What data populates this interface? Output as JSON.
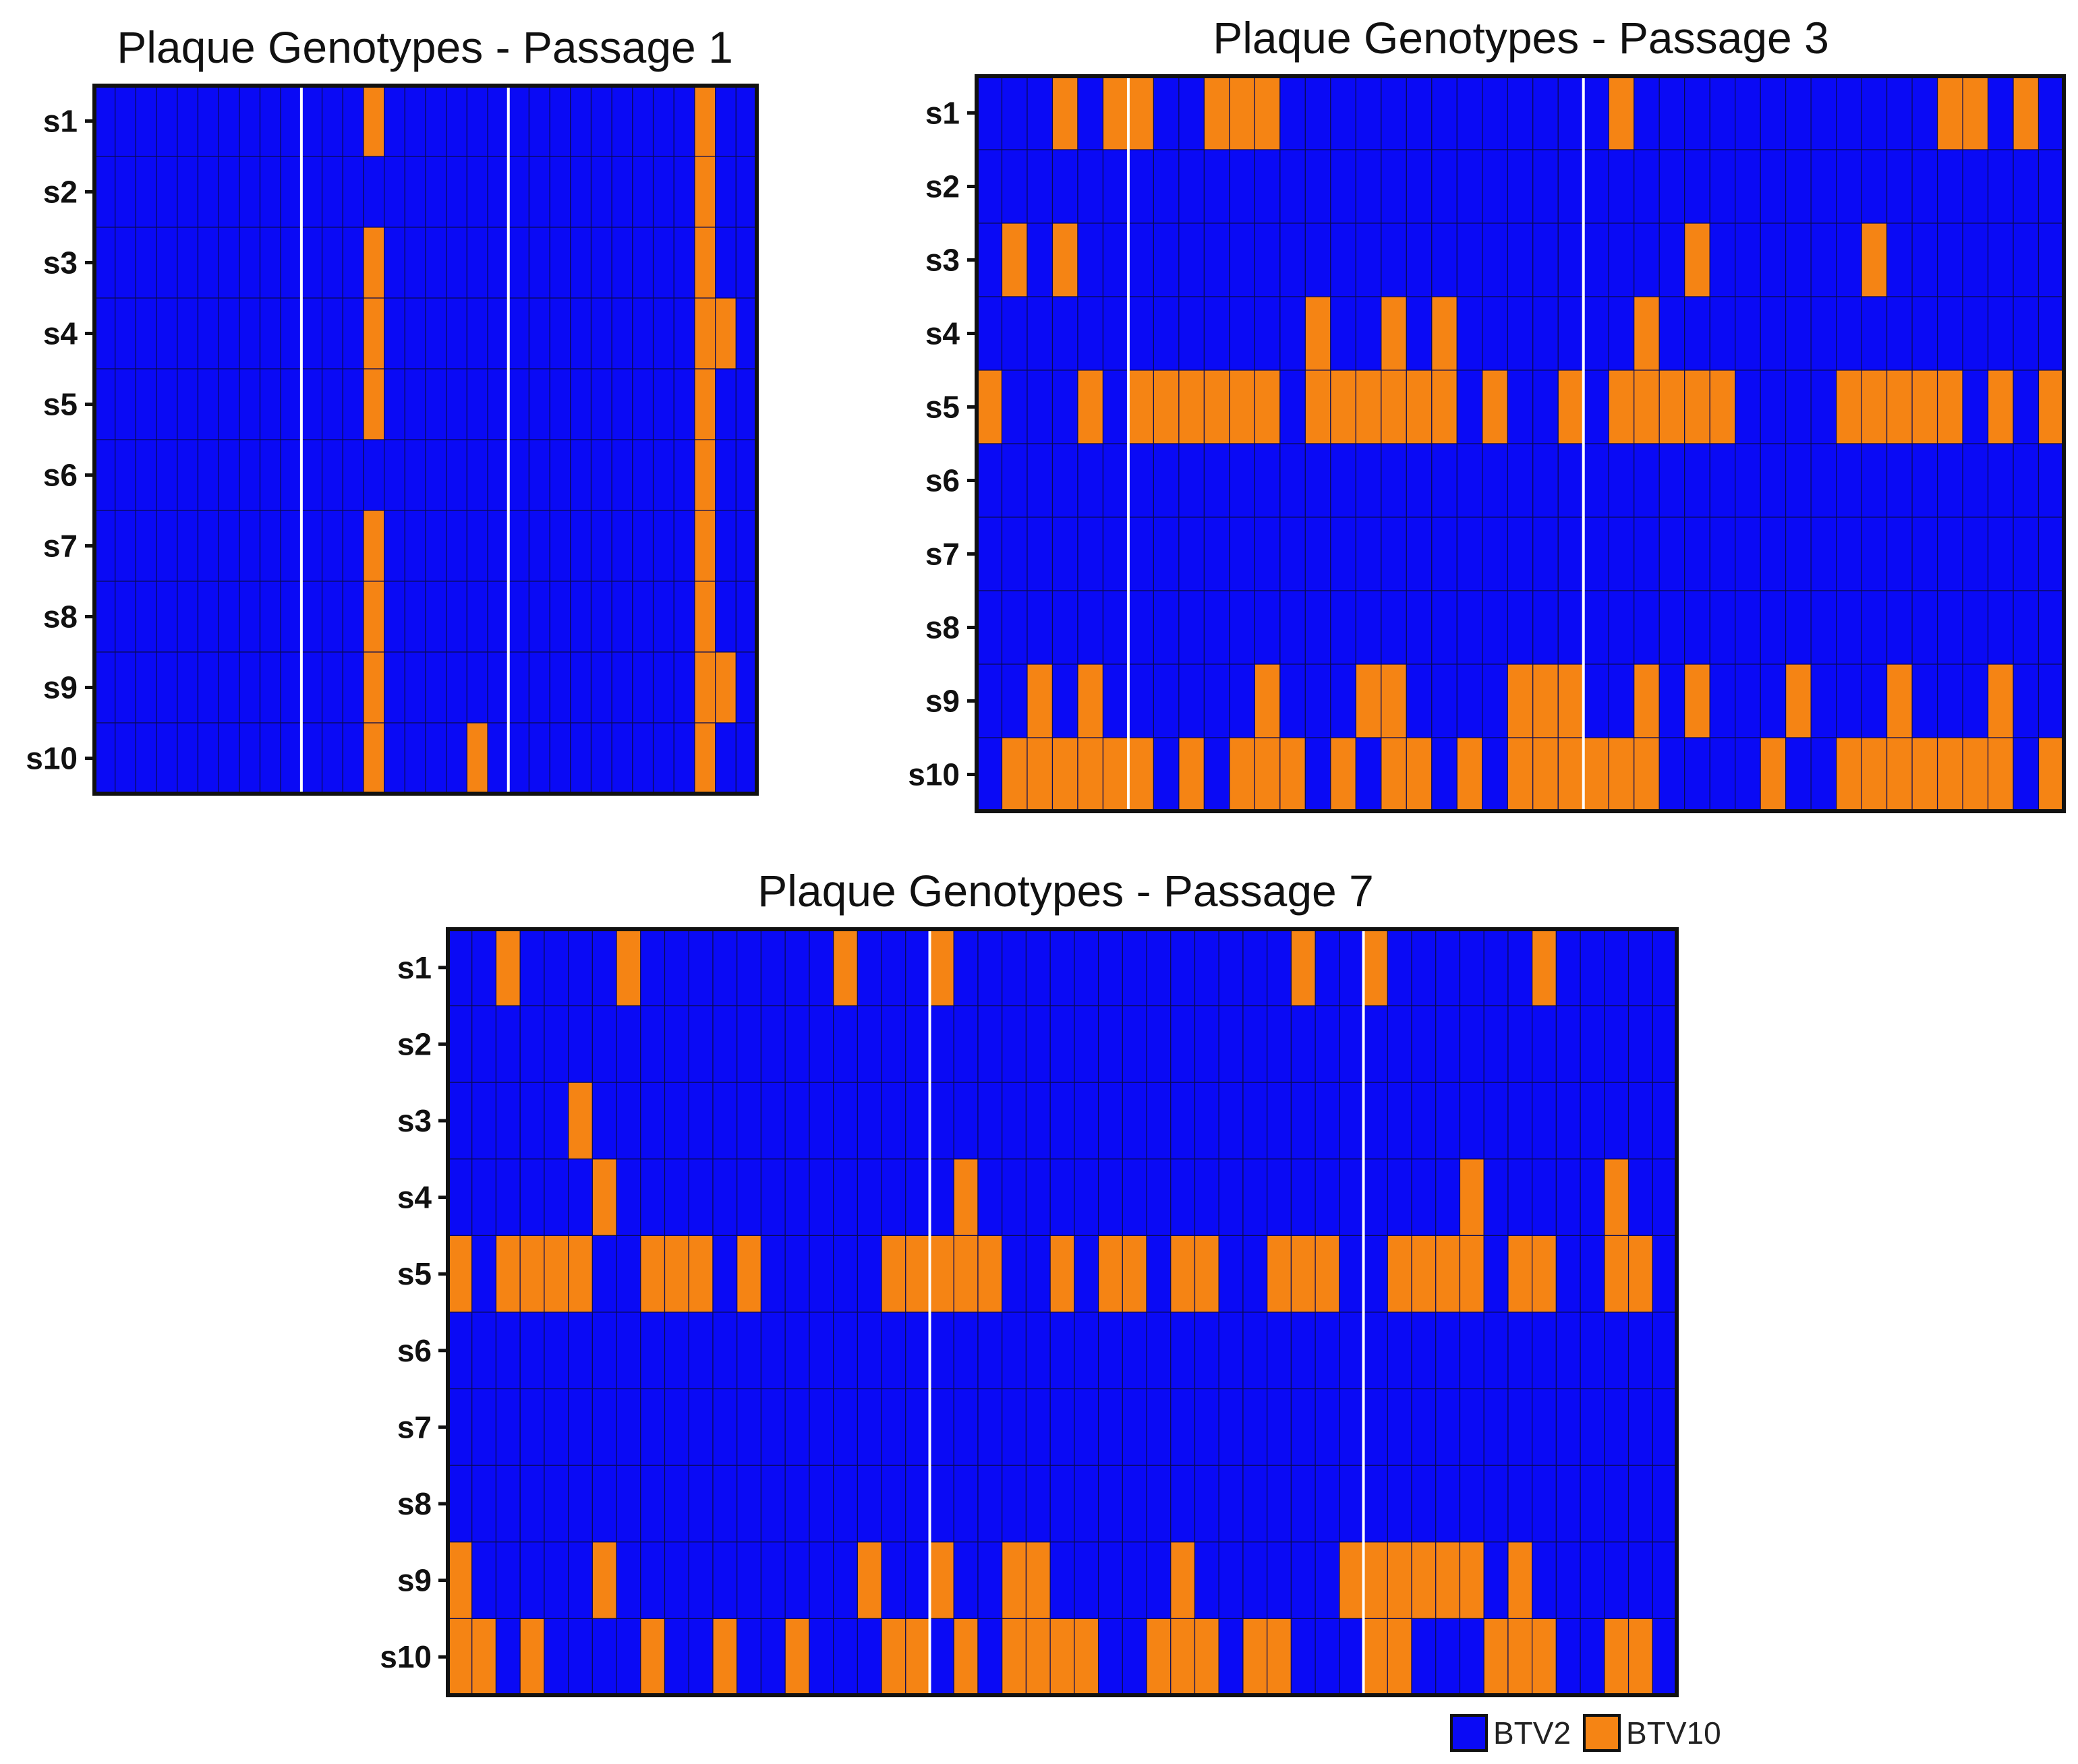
{
  "chart_data": [
    {
      "type": "heatmap",
      "title": "Plaque Genotypes - Passage 1",
      "rows": [
        "s1",
        "s2",
        "s3",
        "s4",
        "s5",
        "s6",
        "s7",
        "s8",
        "s9",
        "s10"
      ],
      "n_columns": 32,
      "separators_after_column": [
        10,
        20
      ],
      "values": [
        "00000000000001000000000000000100",
        "00000000000000000000000000000100",
        "00000000000001000000000000000100",
        "00000000000001000000000000000110",
        "00000000000001000000000000000100",
        "00000000000000000000000000000100",
        "00000000000001000000000000000100",
        "00000000000001000000000000000100",
        "00000000000001000000000000000110",
        "00000000000001000010000000000100"
      ],
      "value_legend": {
        "0": "BTV2",
        "1": "BTV10"
      }
    },
    {
      "type": "heatmap",
      "title": "Plaque Genotypes - Passage 3",
      "rows": [
        "s1",
        "s2",
        "s3",
        "s4",
        "s5",
        "s6",
        "s7",
        "s8",
        "s9",
        "s10"
      ],
      "n_columns": 43,
      "separators_after_column": [
        6,
        24
      ],
      "values": [
        "0001011001110000000000000100000000000011010",
        "0000000000000000000000000000000000000000000",
        "0101000000000000000000000000100000010000000",
        "0000000000000100101000000010000000000000000",
        "1000101111110111111010010111110000111110101",
        "0000000000000000000000000000000000000000000",
        "0000000000000000000000000000000000000000000",
        "0000000000000000000000000000000000000000000",
        "0010100000010001100001110010100010001000100",
        "0111111010111010110101111110000100111111101"
      ],
      "value_legend": {
        "0": "BTV2",
        "1": "BTV10"
      }
    },
    {
      "type": "heatmap",
      "title": "Plaque Genotypes - Passage 7",
      "rows": [
        "s1",
        "s2",
        "s3",
        "s4",
        "s5",
        "s6",
        "s7",
        "s8",
        "s9",
        "s10"
      ],
      "n_columns": 51,
      "separators_after_column": [
        20,
        38
      ],
      "values": [
        "001000010000000010001000000000000001001000000100000",
        "000000000000000000000000000000000000000000000000000",
        "000001000000000000000000000000000000000000000000000",
        "000000100000000000000100000000000000000000100000100",
        "101111001110100000111110010110110011100111101100110",
        "000000000000000000000000000000000000000000000000000",
        "000000000000000000000000000000000000000000000000000",
        "000000000000000000000000000000000000000000000000000",
        "100000100000000001001001100000100000011111101000000",
        "110100001001001000110101111001110110001100011100110"
      ],
      "value_legend": {
        "0": "BTV2",
        "1": "BTV10"
      }
    }
  ],
  "legend": {
    "items": [
      {
        "label": "BTV2",
        "color": "#0a0af5"
      },
      {
        "label": "BTV10",
        "color": "#f58414"
      }
    ]
  },
  "colors": {
    "btv2": "#0a0af5",
    "btv10": "#f58414",
    "grid": "#0b0b55",
    "frame": "#111111",
    "separator": "#ffffff"
  }
}
